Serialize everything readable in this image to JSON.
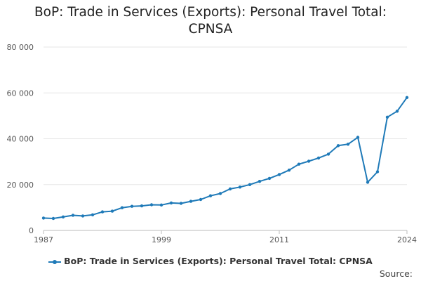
{
  "chart_data": {
    "type": "line",
    "title": "BoP: Trade in Services (Exports): Personal Travel Total: CPNSA",
    "xlabel": "",
    "ylabel": "",
    "x": [
      1987,
      1988,
      1989,
      1990,
      1991,
      1992,
      1993,
      1994,
      1995,
      1996,
      1997,
      1998,
      1999,
      2000,
      2001,
      2002,
      2003,
      2004,
      2005,
      2006,
      2007,
      2008,
      2009,
      2010,
      2011,
      2012,
      2013,
      2014,
      2015,
      2016,
      2017,
      2018,
      2019,
      2020,
      2021,
      2022,
      2023,
      2024
    ],
    "series": [
      {
        "name": "BoP: Trade in Services (Exports): Personal Travel Total: CPNSA",
        "color": "#1f7ab8",
        "values": [
          5400,
          5200,
          5900,
          6600,
          6300,
          6800,
          8100,
          8400,
          9900,
          10500,
          10700,
          11200,
          11100,
          12000,
          11800,
          12700,
          13500,
          15100,
          16100,
          18100,
          18900,
          20000,
          21400,
          22700,
          24400,
          26300,
          28900,
          30200,
          31600,
          33300,
          37000,
          37600,
          40600,
          21000,
          25600,
          49400,
          52000,
          58000
        ]
      }
    ],
    "xticks": [
      "1987",
      "1999",
      "2011",
      "2024"
    ],
    "yticks": [
      "0",
      "20 000",
      "40 000",
      "60 000",
      "80 000"
    ],
    "ytick_values": [
      0,
      20000,
      40000,
      60000,
      80000
    ],
    "xlim": [
      1987,
      2024
    ],
    "ylim": [
      0,
      80000
    ],
    "grid": true,
    "legend_position": "bottom"
  },
  "source_label": "Source:"
}
